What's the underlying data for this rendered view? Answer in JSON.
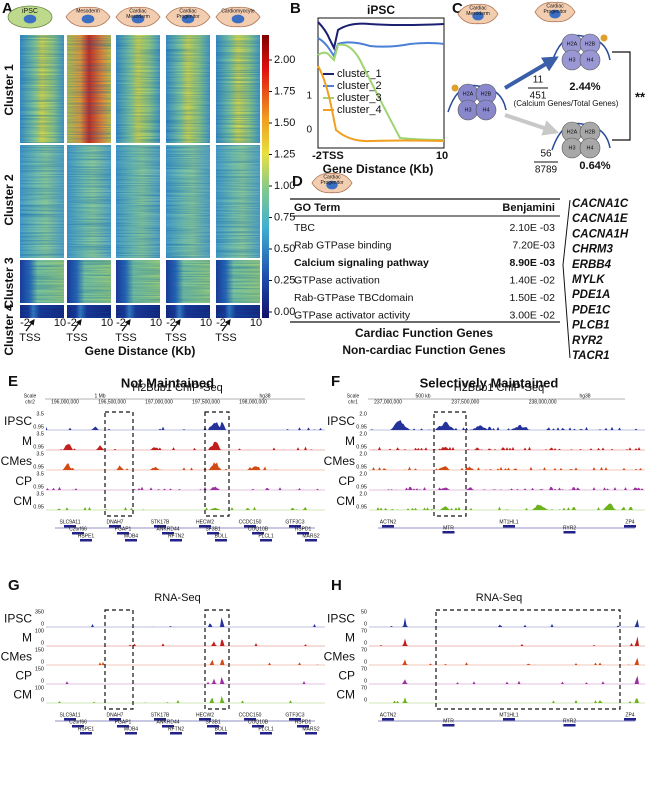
{
  "panel_a": {
    "letter": "A",
    "stages": [
      [
        "iPSC"
      ],
      [
        "Mesoderm"
      ],
      [
        "Cardiac",
        "Mesoderm"
      ],
      [
        "Cardiac",
        "Progenitor"
      ],
      [
        "Cardiomyocyte"
      ]
    ],
    "clusters": [
      "Cluster 1",
      "Cluster 2",
      "Cluster 3",
      "Cluster 4"
    ],
    "colorbar_ticks": [
      "2.00",
      "1.75",
      "1.50",
      "1.25",
      "1.00",
      "0.75",
      "0.50",
      "0.25",
      "0.00"
    ],
    "x_start": "-2",
    "x_end": "10",
    "tss": "TSS",
    "x_label": "Gene Distance (Kb)"
  },
  "panel_b": {
    "letter": "B",
    "title": "iPSC",
    "legend": [
      "cluster_1",
      "cluster_2",
      "cluster_3",
      "cluster_4"
    ],
    "yticks": [
      "1",
      "0"
    ],
    "xticks": [
      "-2",
      "TSS",
      "10"
    ],
    "x_label": "Gene Distance (Kb)"
  },
  "panel_c": {
    "letter": "C",
    "stages": [
      [
        "Cardiac",
        "Mesoderm"
      ],
      [
        "Cardiac",
        "Progenitor"
      ]
    ],
    "histones": [
      "H2A",
      "H2B",
      "H3",
      "H4"
    ],
    "upper": {
      "num": "11",
      "den": "451",
      "pct": "2.44%"
    },
    "note": "(Calcium Genes/Total Genes)",
    "lower": {
      "num": "56",
      "den": "8789",
      "pct": "0.64%"
    },
    "significance": "**"
  },
  "panel_d": {
    "letter": "D",
    "stage": [
      "Cardiac",
      "Progenitor"
    ],
    "table": {
      "header": [
        "GO Term",
        "Benjamini"
      ],
      "rows": [
        [
          "TBC",
          "2.10E -03"
        ],
        [
          "Rab GTPase binding",
          "7.20E-03"
        ],
        [
          "Calcium signaling pathway",
          "8.90E -03"
        ],
        [
          "GTPase activation",
          "1.40E -02"
        ],
        [
          "Rab-GTPase TBCdomain",
          "1.50E -02"
        ],
        [
          "GTPase activator activity",
          "3.00E -02"
        ]
      ]
    },
    "genes": [
      "CACNA1C",
      "CACNA1E",
      "CACNA1H",
      "CHRM3",
      "ERBB4",
      "MYLK",
      "PDE1A",
      "PDE1C",
      "PLCB1",
      "RYR2",
      "TACR1"
    ],
    "legend": [
      "Cardiac Function Genes",
      "Non-cardiac Function Genes"
    ]
  },
  "tracks": [
    "IPSC",
    "M",
    "CMes",
    "CP",
    "CM"
  ],
  "panel_e": {
    "letter": "E",
    "title": "Not Maintained",
    "track_title": "H2Bub1 ChIP-Seq",
    "scale": "Scale",
    "chrom": "chr2",
    "bar": "1 Mb",
    "assembly": "hg38",
    "coords": [
      "196,000,000",
      "196,500,000",
      "197,000,000",
      "197,500,000",
      "198,000,000"
    ],
    "scales": [
      [
        "3.5",
        "0.95"
      ],
      [
        "3.5",
        "0.95"
      ],
      [
        "3.5",
        "0.95"
      ],
      [
        "3.5",
        "0.95"
      ],
      [
        "3.5",
        "0.95"
      ]
    ],
    "genes": [
      "SLC9A11",
      "DNAH7",
      "STK17B",
      "HECW2",
      "CCDC150",
      "GTF3C3",
      "C2orf66",
      "PGAP1",
      "ANKRD44",
      "SF3B1",
      "COQ10B",
      "HSPD1",
      "HSPE1",
      "MOB4",
      "RFTN2",
      "BOLL",
      "PLCL1",
      "MARS2"
    ]
  },
  "panel_f": {
    "letter": "F",
    "title": "Selectively Maintained",
    "track_title": "H2Bub1 ChIP-Seq",
    "scale": "Scale",
    "chrom": "chr1",
    "bar": "500 kb",
    "assembly": "hg38",
    "coords": [
      "237,000,000",
      "237,500,000",
      "238,000,000"
    ],
    "scales": [
      [
        "2.0",
        "0.95"
      ],
      [
        "2.0",
        "0.95"
      ],
      [
        "2.0",
        "0.95"
      ],
      [
        "2.0",
        "0.95"
      ],
      [
        "2.0",
        "0.95"
      ]
    ],
    "genes": [
      "ACTN2",
      "MTR",
      "MT1HL1",
      "RYR2",
      "ZP4"
    ]
  },
  "panel_g": {
    "letter": "G",
    "track_title": "RNA-Seq",
    "scales": [
      [
        "350",
        "0"
      ],
      [
        "100",
        "0"
      ],
      [
        "150",
        "0"
      ],
      [
        "150",
        "0"
      ],
      [
        "100",
        "0"
      ]
    ]
  },
  "panel_h": {
    "letter": "H",
    "track_title": "RNA-Seq",
    "scales": [
      [
        "50",
        "0"
      ],
      [
        "70",
        "0"
      ],
      [
        "70",
        "0"
      ],
      [
        "70",
        "0"
      ],
      [
        "70",
        "0"
      ]
    ]
  }
}
